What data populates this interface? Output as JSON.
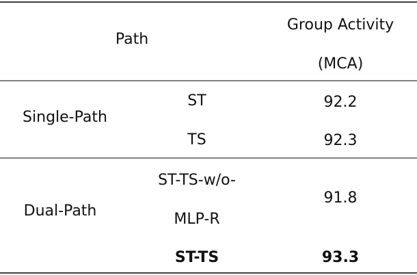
{
  "table": {
    "header": {
      "path": "Path",
      "metric": [
        "Group Activity",
        "(MCA)"
      ]
    },
    "groups": [
      {
        "name": "Single-Path",
        "rows": [
          {
            "path": [
              "ST"
            ],
            "value": 92.2
          },
          {
            "path": [
              "TS"
            ],
            "value": 92.3
          }
        ]
      },
      {
        "name": "Dual-Path",
        "rows": [
          {
            "path": [
              "ST-TS-w/o-",
              "MLP-R"
            ],
            "value": 91.8
          },
          {
            "path": [
              "ST-TS"
            ],
            "value": 93.3
          }
        ]
      }
    ]
  }
}
